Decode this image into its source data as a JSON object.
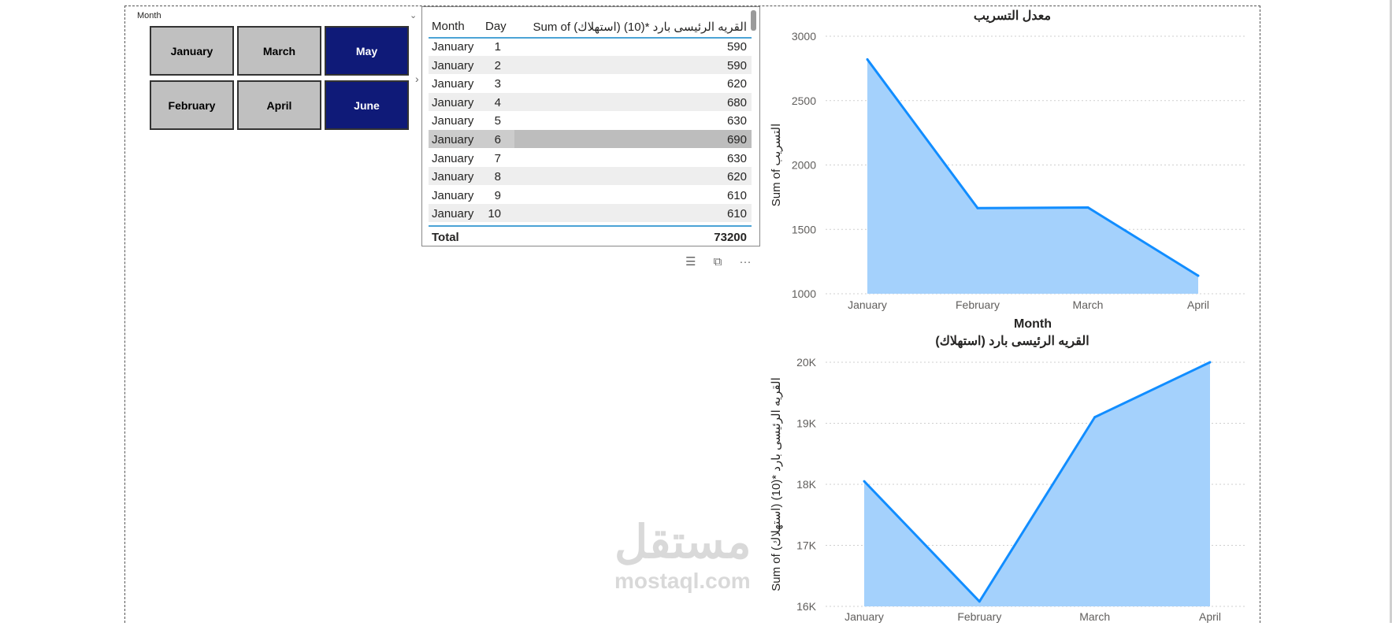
{
  "slicer": {
    "header": "Month",
    "tiles": [
      {
        "label": "January",
        "selected": false
      },
      {
        "label": "March",
        "selected": false
      },
      {
        "label": "May",
        "selected": true
      },
      {
        "label": "February",
        "selected": false
      },
      {
        "label": "April",
        "selected": false
      },
      {
        "label": "June",
        "selected": true
      }
    ]
  },
  "table": {
    "headers": [
      "Month",
      "Day",
      "Sum of (استهلاك) القريه الرئيسى بارد *(10)"
    ],
    "rows": [
      {
        "month": "January",
        "day": "1",
        "value": "590"
      },
      {
        "month": "January",
        "day": "2",
        "value": "590"
      },
      {
        "month": "January",
        "day": "3",
        "value": "620"
      },
      {
        "month": "January",
        "day": "4",
        "value": "680"
      },
      {
        "month": "January",
        "day": "5",
        "value": "630"
      },
      {
        "month": "January",
        "day": "6",
        "value": "690"
      },
      {
        "month": "January",
        "day": "7",
        "value": "630"
      },
      {
        "month": "January",
        "day": "8",
        "value": "620"
      },
      {
        "month": "January",
        "day": "9",
        "value": "610"
      },
      {
        "month": "January",
        "day": "10",
        "value": "610"
      }
    ],
    "total_label": "Total",
    "total_value": "73200"
  },
  "watermark": {
    "arabic": "مستقل",
    "latin": "mostaql.com"
  },
  "chart_data": [
    {
      "type": "area",
      "title": "معدل التسريب",
      "xlabel": "Month",
      "ylabel": "Sum of التسريب",
      "categories": [
        "January",
        "February",
        "March",
        "April"
      ],
      "values": [
        2820,
        1665,
        1670,
        1140
      ],
      "ylim": [
        1000,
        3000
      ],
      "yticks": [
        "1000",
        "1500",
        "2000",
        "2500",
        "3000"
      ],
      "grid": true
    },
    {
      "type": "area",
      "title": "القريه الرئيسى بارد (استهلاك)",
      "xlabel": "",
      "ylabel": "Sum of (استهلاك) القريه الرئيسى بارد *(10)",
      "categories": [
        "January",
        "February",
        "March",
        "April"
      ],
      "values": [
        18050,
        16080,
        19100,
        20000
      ],
      "ylim": [
        16000,
        20000
      ],
      "yticks": [
        "16K",
        "17K",
        "18K",
        "19K",
        "20K"
      ],
      "grid": true
    }
  ],
  "colors": {
    "line": "#118dff",
    "area": "#a4d1fc",
    "grid": "#cfcfcf",
    "selected_tile": "#0f1a78",
    "tile": "#c0c0c0"
  }
}
